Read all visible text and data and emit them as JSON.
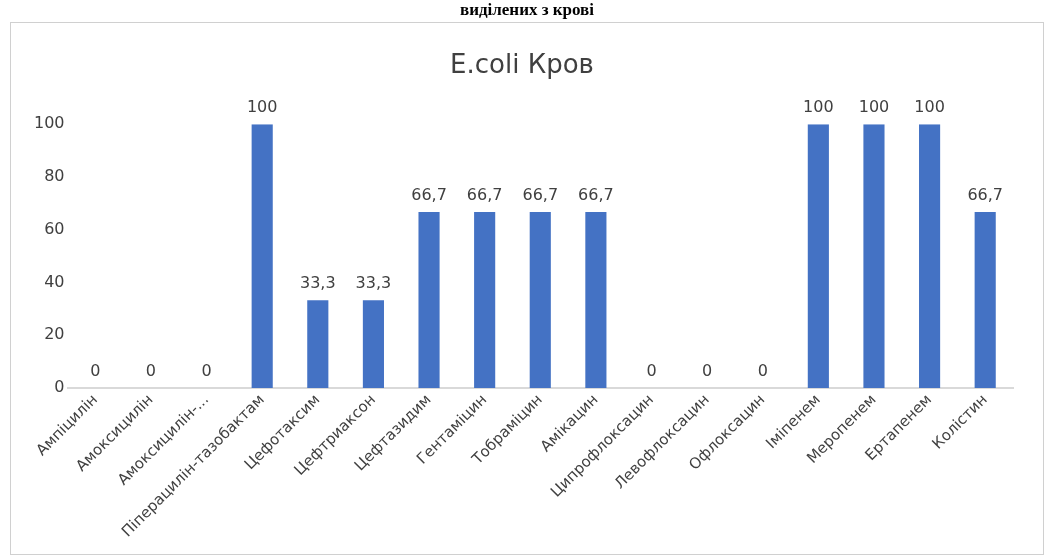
{
  "chart_data": {
    "type": "bar",
    "title": "E.coli Кров",
    "annotations": [
      "виділених з крові"
    ],
    "categories": [
      "Ампіцилін",
      "Амоксицилін",
      "Амоксицилін-...",
      "Піперацилін-тазобактам",
      "Цефотаксим",
      "Цефтриаксон",
      "Цефтазидим",
      "Гентаміцин",
      "Тобраміцин",
      "Амікацин",
      "Ципрофлоксацин",
      "Левофлоксацин",
      "Офлоксацин",
      "Іміпенем",
      "Меропенем",
      "Ертапенем",
      "Колістин"
    ],
    "values": [
      0,
      0,
      0,
      100,
      33.3,
      33.3,
      66.7,
      66.7,
      66.7,
      66.7,
      0,
      0,
      0,
      100,
      100,
      100,
      66.7
    ],
    "value_labels": [
      "0",
      "0",
      "0",
      "100",
      "33,3",
      "33,3",
      "66,7",
      "66,7",
      "66,7",
      "66,7",
      "0",
      "0",
      "0",
      "100",
      "100",
      "100",
      "66,7"
    ],
    "color": "#4472c4",
    "ylim": [
      0,
      100
    ],
    "yticks": [
      0,
      20,
      40,
      60,
      80,
      100
    ],
    "grid": false,
    "legend": false
  }
}
